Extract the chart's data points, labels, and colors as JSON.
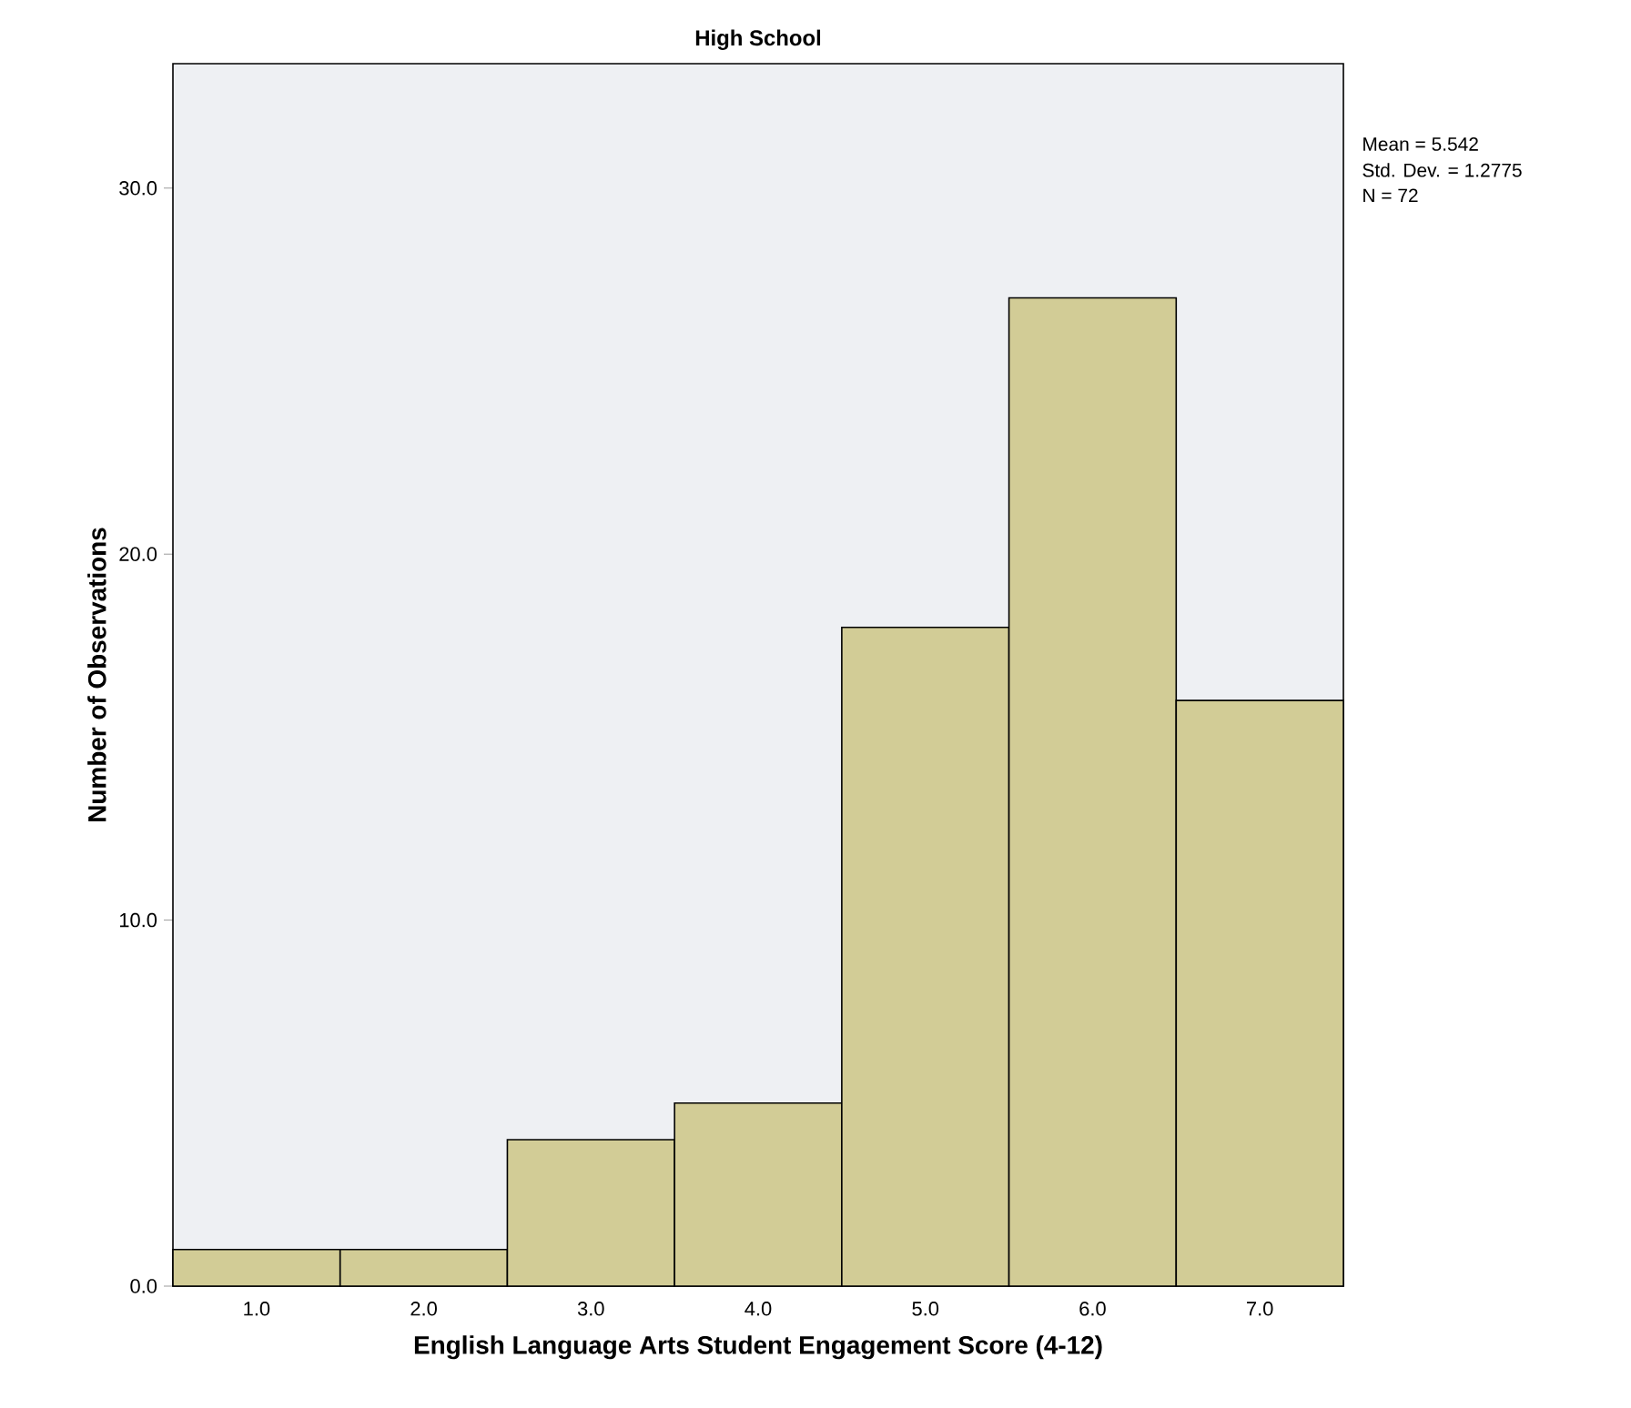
{
  "chart_data": {
    "type": "histogram",
    "title": "High School",
    "xlabel": "English Language Arts Student Engagement Score (4-12)",
    "ylabel": "Number of Observations",
    "bins": [
      0.5,
      1.5,
      2.5,
      3.5,
      4.5,
      5.5,
      6.5,
      7.5
    ],
    "values": [
      1,
      1,
      4,
      5,
      18,
      27,
      16
    ],
    "color": "#d2cc96",
    "xlim": [
      0.5,
      7.5
    ],
    "ylim": [
      0,
      33.4
    ],
    "xticks": [
      {
        "value": 1,
        "label": "1.0"
      },
      {
        "value": 2,
        "label": "2.0"
      },
      {
        "value": 3,
        "label": "3.0"
      },
      {
        "value": 4,
        "label": "4.0"
      },
      {
        "value": 5,
        "label": "5.0"
      },
      {
        "value": 6,
        "label": "6.0"
      },
      {
        "value": 7,
        "label": "7.0"
      }
    ],
    "yticks": [
      {
        "value": 0,
        "label": "0.0"
      },
      {
        "value": 10,
        "label": "10.0"
      },
      {
        "value": 20,
        "label": "20.0"
      },
      {
        "value": 30,
        "label": "30.0"
      }
    ],
    "grid": false,
    "annotations": [
      "Mean = 5.542",
      "Std. Dev. = 1.2775",
      "N = 72"
    ]
  }
}
